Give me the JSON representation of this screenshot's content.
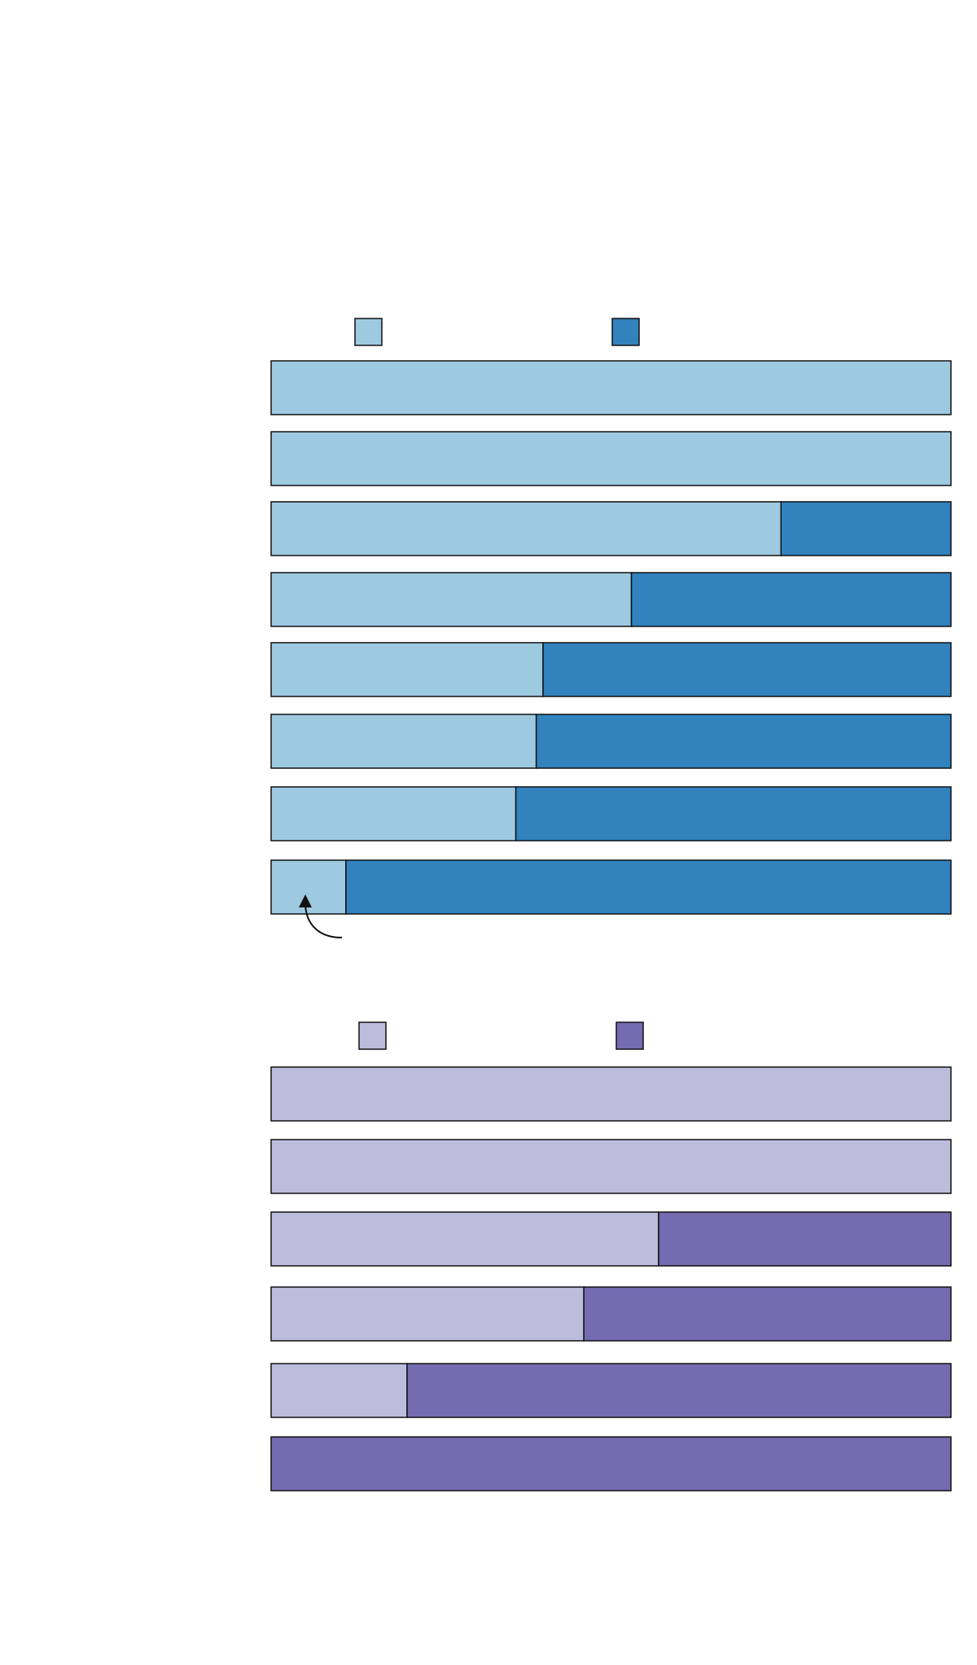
{
  "chart_data": [
    {
      "type": "bar",
      "orientation": "horizontal",
      "stacked": "percent",
      "categories": [
        "",
        "",
        "",
        "",
        "",
        "",
        "",
        ""
      ],
      "series": [
        {
          "values": [
            100,
            100,
            75,
            53,
            40,
            39,
            36,
            11
          ],
          "color": "#9ecae1"
        },
        {
          "values": [
            0,
            0,
            25,
            47,
            60,
            61,
            64,
            89
          ],
          "color": "#3182bd"
        }
      ],
      "xlim": [
        0,
        100
      ],
      "grid": false,
      "legend": "top",
      "annotations": [
        "curved-arrow-pointing-to-last-bar"
      ]
    },
    {
      "type": "bar",
      "orientation": "horizontal",
      "stacked": "percent",
      "categories": [
        "",
        "",
        "",
        "",
        "",
        ""
      ],
      "series": [
        {
          "values": [
            100,
            100,
            57,
            46,
            20,
            0
          ],
          "color": "#bcbddc"
        },
        {
          "values": [
            0,
            0,
            43,
            54,
            80,
            100
          ],
          "color": "#756bb1"
        }
      ],
      "xlim": [
        0,
        100
      ],
      "grid": false,
      "legend": "top"
    }
  ]
}
